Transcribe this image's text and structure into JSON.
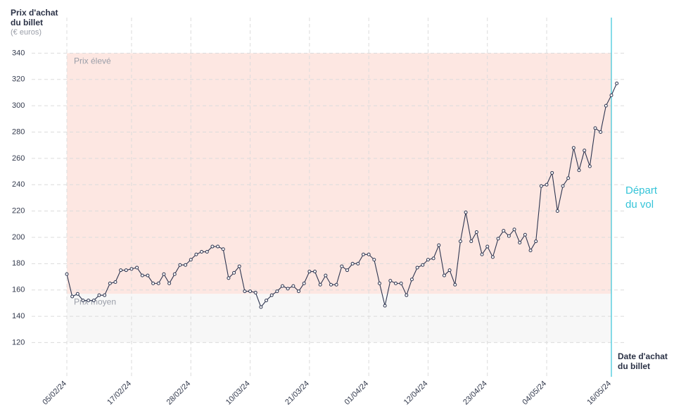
{
  "chart_data": {
    "type": "line",
    "y_title": "Prix d'achat du billet",
    "y_unit": "(€ euros)",
    "x_title": "Date d'achat du billet",
    "annotation": "Départ du vol",
    "bands": [
      {
        "name": "Prix élevé",
        "range": [
          157,
          340
        ],
        "color": "#fde7e2"
      },
      {
        "name": "Prix moyen",
        "range": [
          120,
          157
        ],
        "color": "#f7f7f7"
      }
    ],
    "categories": [
      "05/02/24",
      null,
      null,
      null,
      null,
      null,
      null,
      null,
      null,
      null,
      null,
      null,
      "17/02/24",
      null,
      null,
      null,
      null,
      null,
      null,
      null,
      null,
      null,
      null,
      "28/02/24",
      null,
      null,
      null,
      null,
      null,
      null,
      null,
      null,
      null,
      null,
      "10/03/24",
      null,
      null,
      null,
      null,
      null,
      null,
      null,
      null,
      null,
      null,
      "21/03/24",
      null,
      null,
      null,
      null,
      null,
      null,
      null,
      null,
      null,
      null,
      "01/04/24",
      null,
      null,
      null,
      null,
      null,
      null,
      null,
      null,
      null,
      null,
      "12/04/24",
      null,
      null,
      null,
      null,
      null,
      null,
      null,
      null,
      null,
      null,
      "23/04/24",
      null,
      null,
      null,
      null,
      null,
      null,
      null,
      null,
      null,
      null,
      "04/05/24",
      null,
      null,
      null,
      null,
      null,
      null,
      null,
      null,
      null,
      null,
      null,
      "16/05/24",
      null
    ],
    "series": [
      {
        "name": "Prix",
        "color": "#2d3550",
        "values": [
          172,
          155,
          157,
          152,
          152,
          152,
          156,
          156,
          165,
          166,
          175,
          175,
          176,
          177,
          171,
          171,
          165,
          165,
          172,
          165,
          172,
          179,
          179,
          183,
          187,
          189,
          189,
          193,
          193,
          191,
          169,
          173,
          178,
          159,
          159,
          158,
          147,
          152,
          156,
          159,
          163,
          161,
          163,
          159,
          165,
          174,
          174,
          164,
          171,
          164,
          164,
          178,
          175,
          180,
          180,
          187,
          187,
          183,
          165,
          148,
          167,
          165,
          165,
          156,
          168,
          177,
          179,
          183,
          184,
          194,
          171,
          175,
          164,
          197,
          219,
          197,
          204,
          187,
          193,
          185,
          199,
          205,
          201,
          206,
          196,
          202,
          190,
          197,
          239,
          240,
          249,
          220,
          239,
          245,
          268,
          251,
          266,
          254,
          283,
          280,
          300,
          308,
          317
        ]
      }
    ],
    "ylim": [
      94,
      367
    ],
    "yticks": [
      120,
      140,
      160,
      180,
      200,
      220,
      240,
      260,
      280,
      300,
      320,
      340
    ],
    "grid": true,
    "departure_color": "#35c4d8"
  }
}
